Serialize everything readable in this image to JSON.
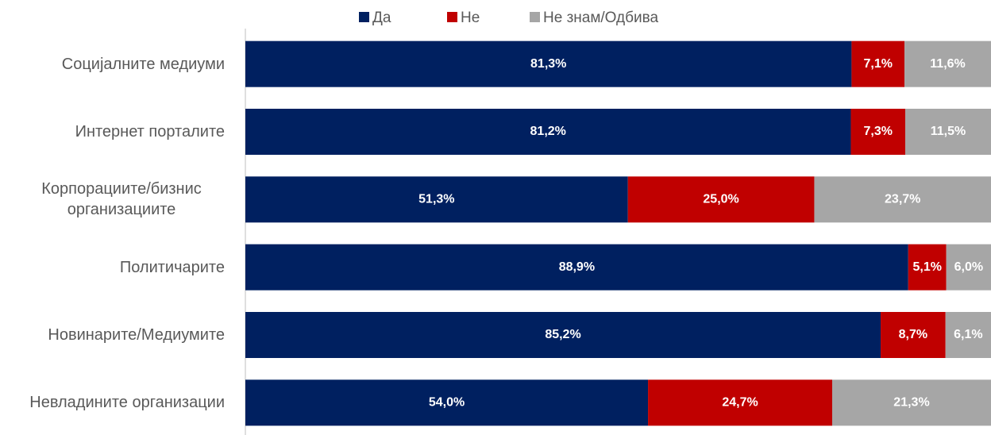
{
  "chart_data": {
    "type": "stacked-barh",
    "categories": [
      "Социјалните медиуми",
      "Интернет порталите",
      "Корпорациите/бизнис организациите",
      "Политичарите",
      "Новинарите/Медиумите",
      "Невладините организации"
    ],
    "series": [
      {
        "name": "Да",
        "color": "#002060",
        "values": [
          81.3,
          81.2,
          51.3,
          88.9,
          85.2,
          54.0
        ],
        "value_labels": [
          "81,3%",
          "81,2%",
          "51,3%",
          "88,9%",
          "85,2%",
          "54,0%"
        ]
      },
      {
        "name": "Не",
        "color": "#c00000",
        "values": [
          7.1,
          7.3,
          25.0,
          5.1,
          8.7,
          24.7
        ],
        "value_labels": [
          "7,1%",
          "7,3%",
          "25,0%",
          "5,1%",
          "8,7%",
          "24,7%"
        ]
      },
      {
        "name": "Не знам/Одбива",
        "color": "#a6a6a6",
        "values": [
          11.6,
          11.5,
          23.7,
          6.0,
          6.1,
          21.3
        ],
        "value_labels": [
          "11,6%",
          "11,5%",
          "23,7%",
          "6,0%",
          "6,1%",
          "21,3%"
        ]
      }
    ],
    "xlim": [
      0,
      100
    ],
    "legend": "top"
  }
}
